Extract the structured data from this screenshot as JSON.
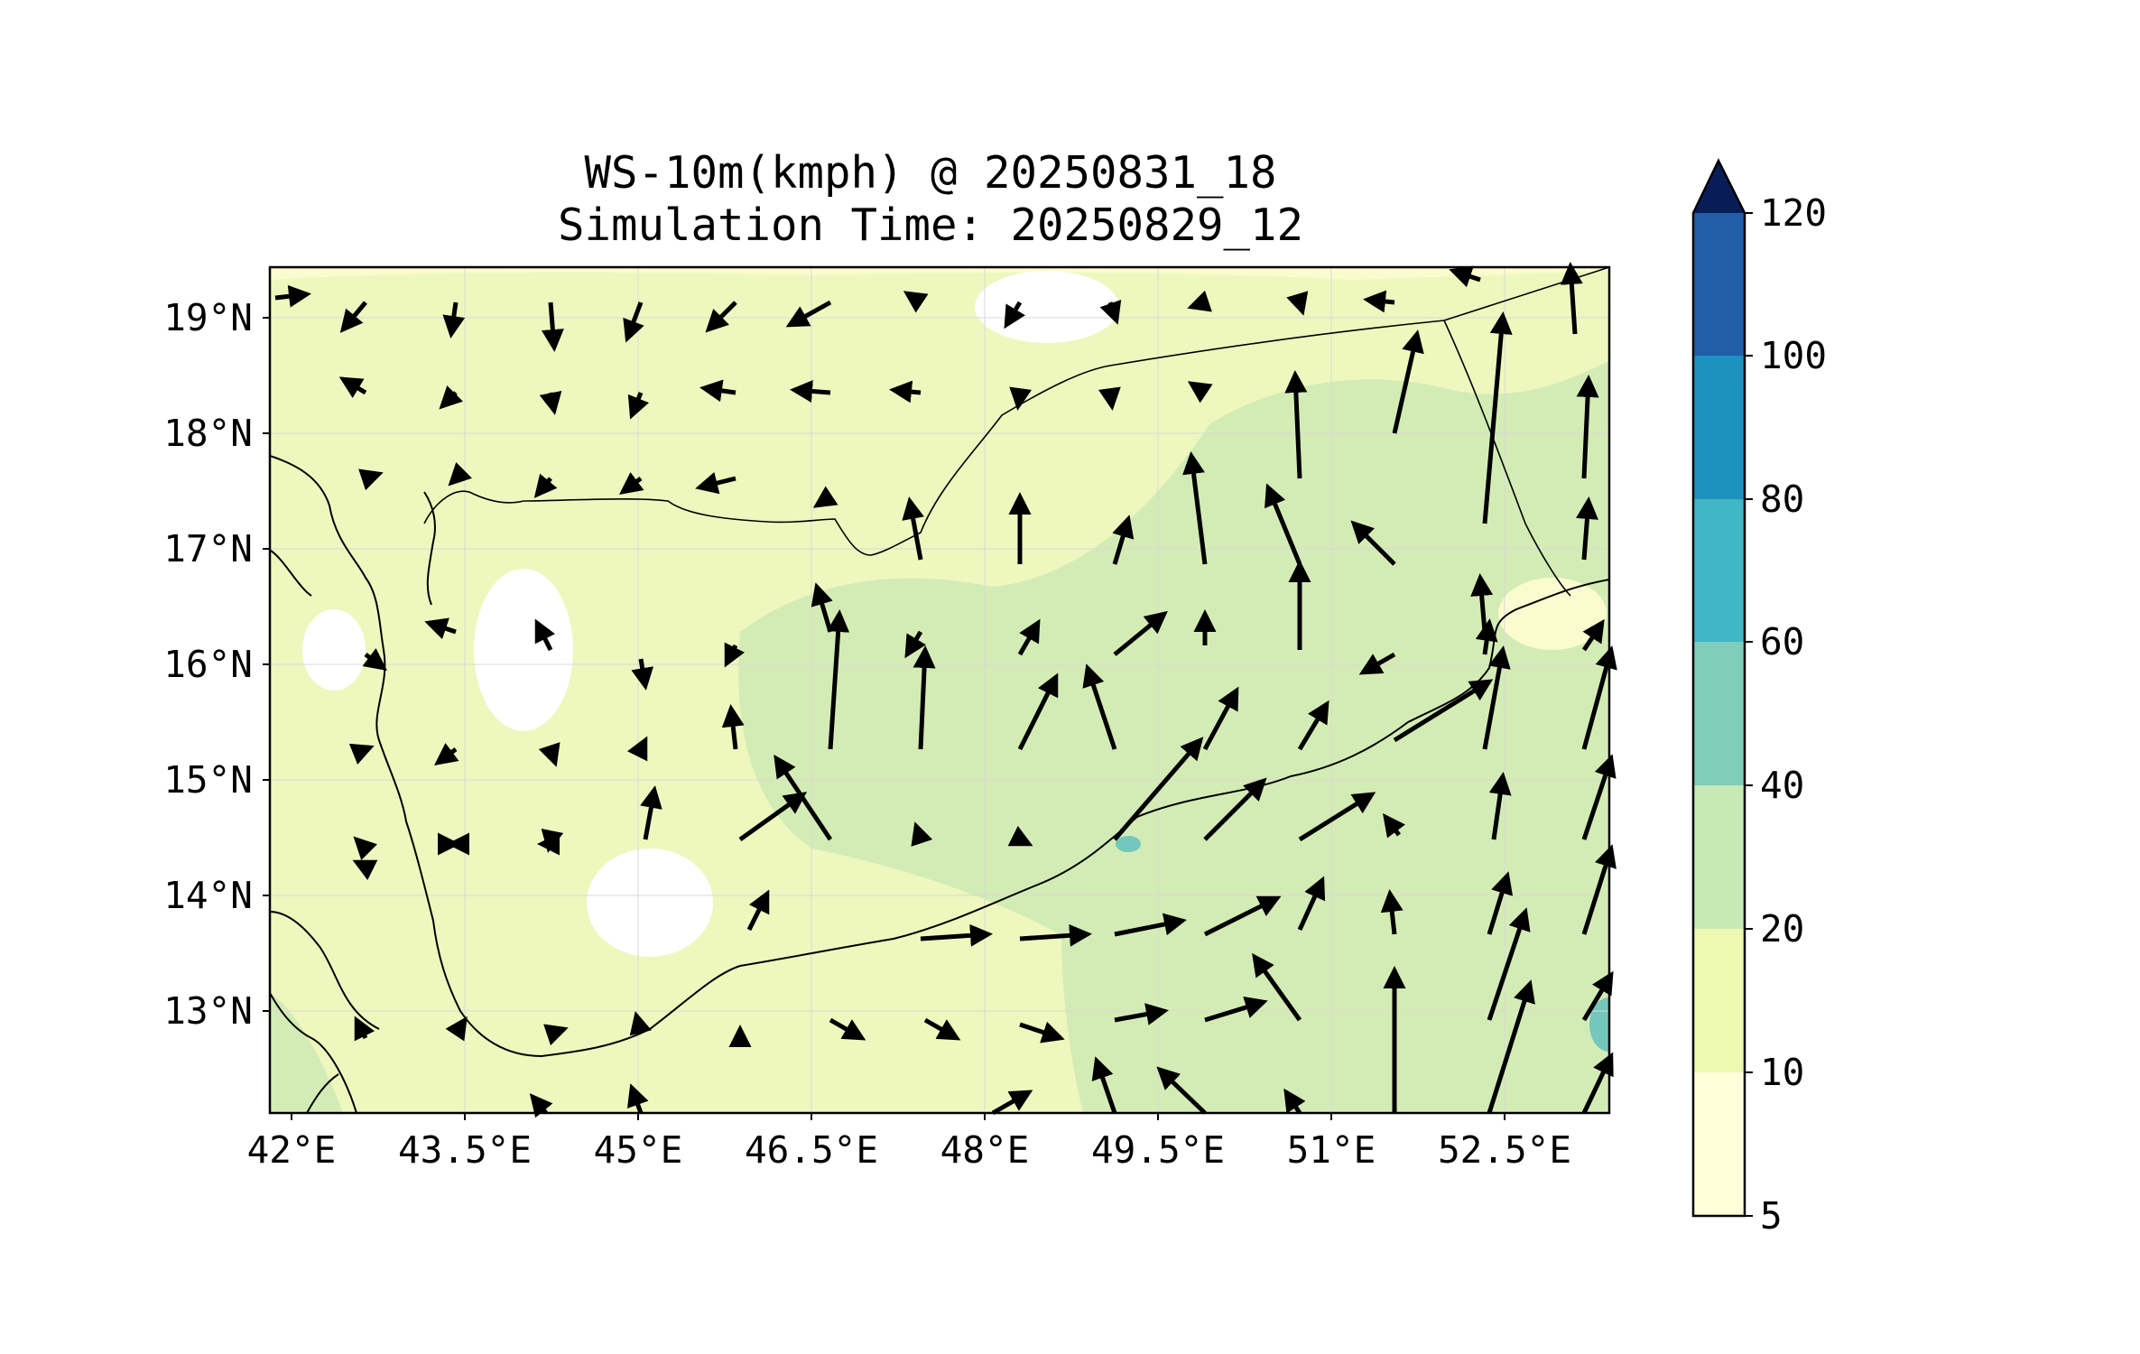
{
  "title": {
    "line1": "WS-10m(kmph) @ 20250831_18",
    "line2": "Simulation Time: 20250829_12"
  },
  "map": {
    "lon_ticks": [
      "42°E",
      "43.5°E",
      "45°E",
      "46.5°E",
      "48°E",
      "49.5°E",
      "51°E",
      "52.5°E"
    ],
    "lat_ticks": [
      "19°N",
      "18°N",
      "17°N",
      "16°N",
      "15°N",
      "14°N",
      "13°N"
    ],
    "lon_range": [
      42.0,
      53.6
    ],
    "lat_range": [
      12.1,
      19.45
    ],
    "field_colors": {
      "bg": "#fafccf",
      "light": "#eef7be",
      "medium": "#d3ecb5",
      "high": "#74c7bc"
    }
  },
  "colorbar": {
    "levels": [
      "5",
      "10",
      "20",
      "40",
      "60",
      "80",
      "100",
      "120"
    ],
    "colors": [
      "#ffffd9",
      "#edf8b1",
      "#c7e9b4",
      "#7fcdbb",
      "#41b6c4",
      "#1d91c0",
      "#225ea8",
      "#0c2c84"
    ],
    "extend_color": "#081d58"
  }
}
